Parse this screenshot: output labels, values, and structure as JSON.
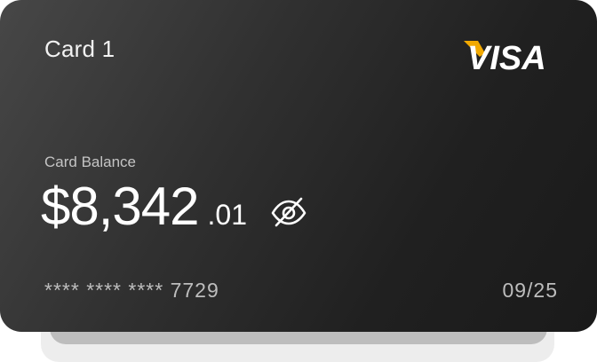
{
  "card": {
    "name": "Card 1",
    "brand": "VISA",
    "balance_label": "Card Balance",
    "balance_main": "$8,342",
    "balance_cents": ".01",
    "number_masked": "**** **** **** 7729",
    "expiry": "09/25"
  },
  "icons": {
    "visibility_toggle": "eye-slash-icon"
  },
  "colors": {
    "card_bg_start": "#474747",
    "card_bg_end": "#1a1a1a",
    "visa_accent": "#f2a900"
  }
}
